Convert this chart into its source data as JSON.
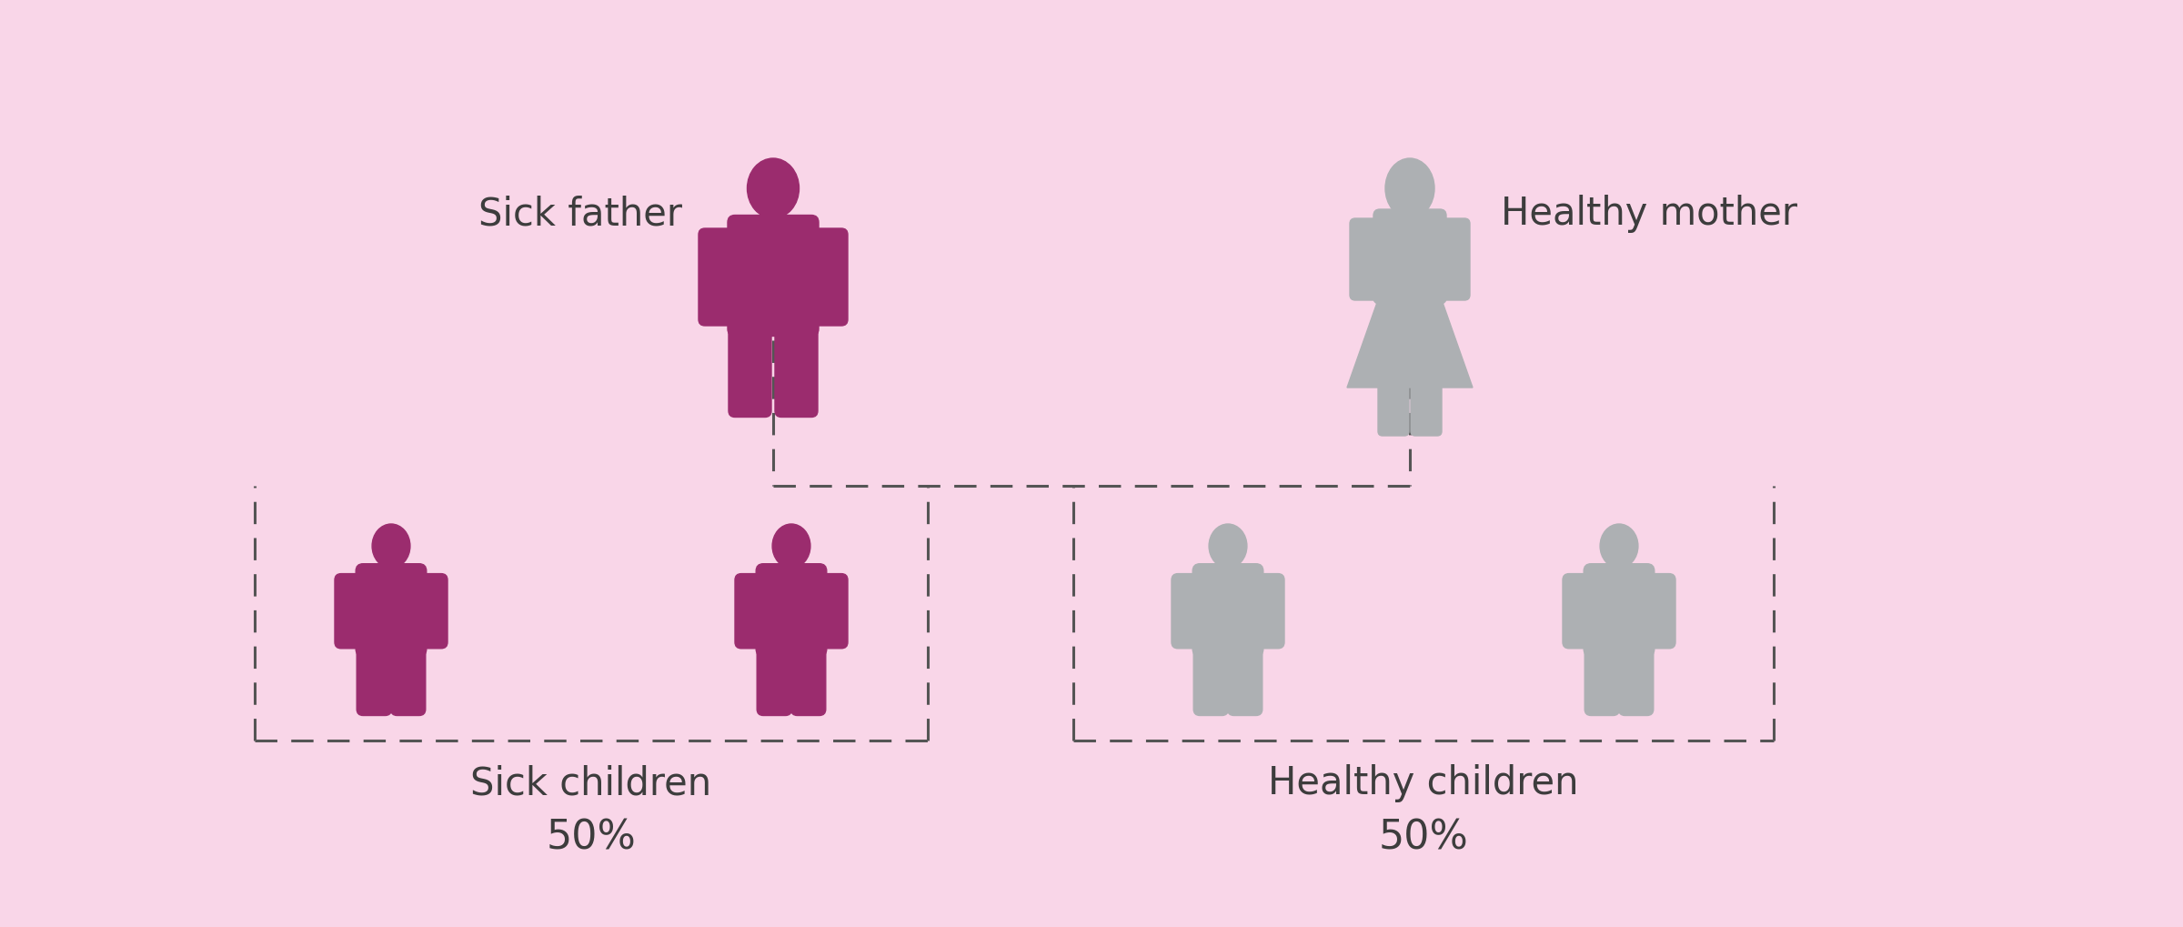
{
  "background_color": "#f9d6e8",
  "sick_color": "#9b2c6e",
  "healthy_color": "#adb0b3",
  "text_color": "#3d3d3d",
  "sick_father_label": "Sick father",
  "healthy_mother_label": "Healthy mother",
  "sick_children_label": "Sick children",
  "healthy_children_label": "Healthy children",
  "sick_pct": "50%",
  "healthy_pct": "50%",
  "label_fontsize": 30,
  "pct_fontsize": 32,
  "dash_color": "#555555"
}
